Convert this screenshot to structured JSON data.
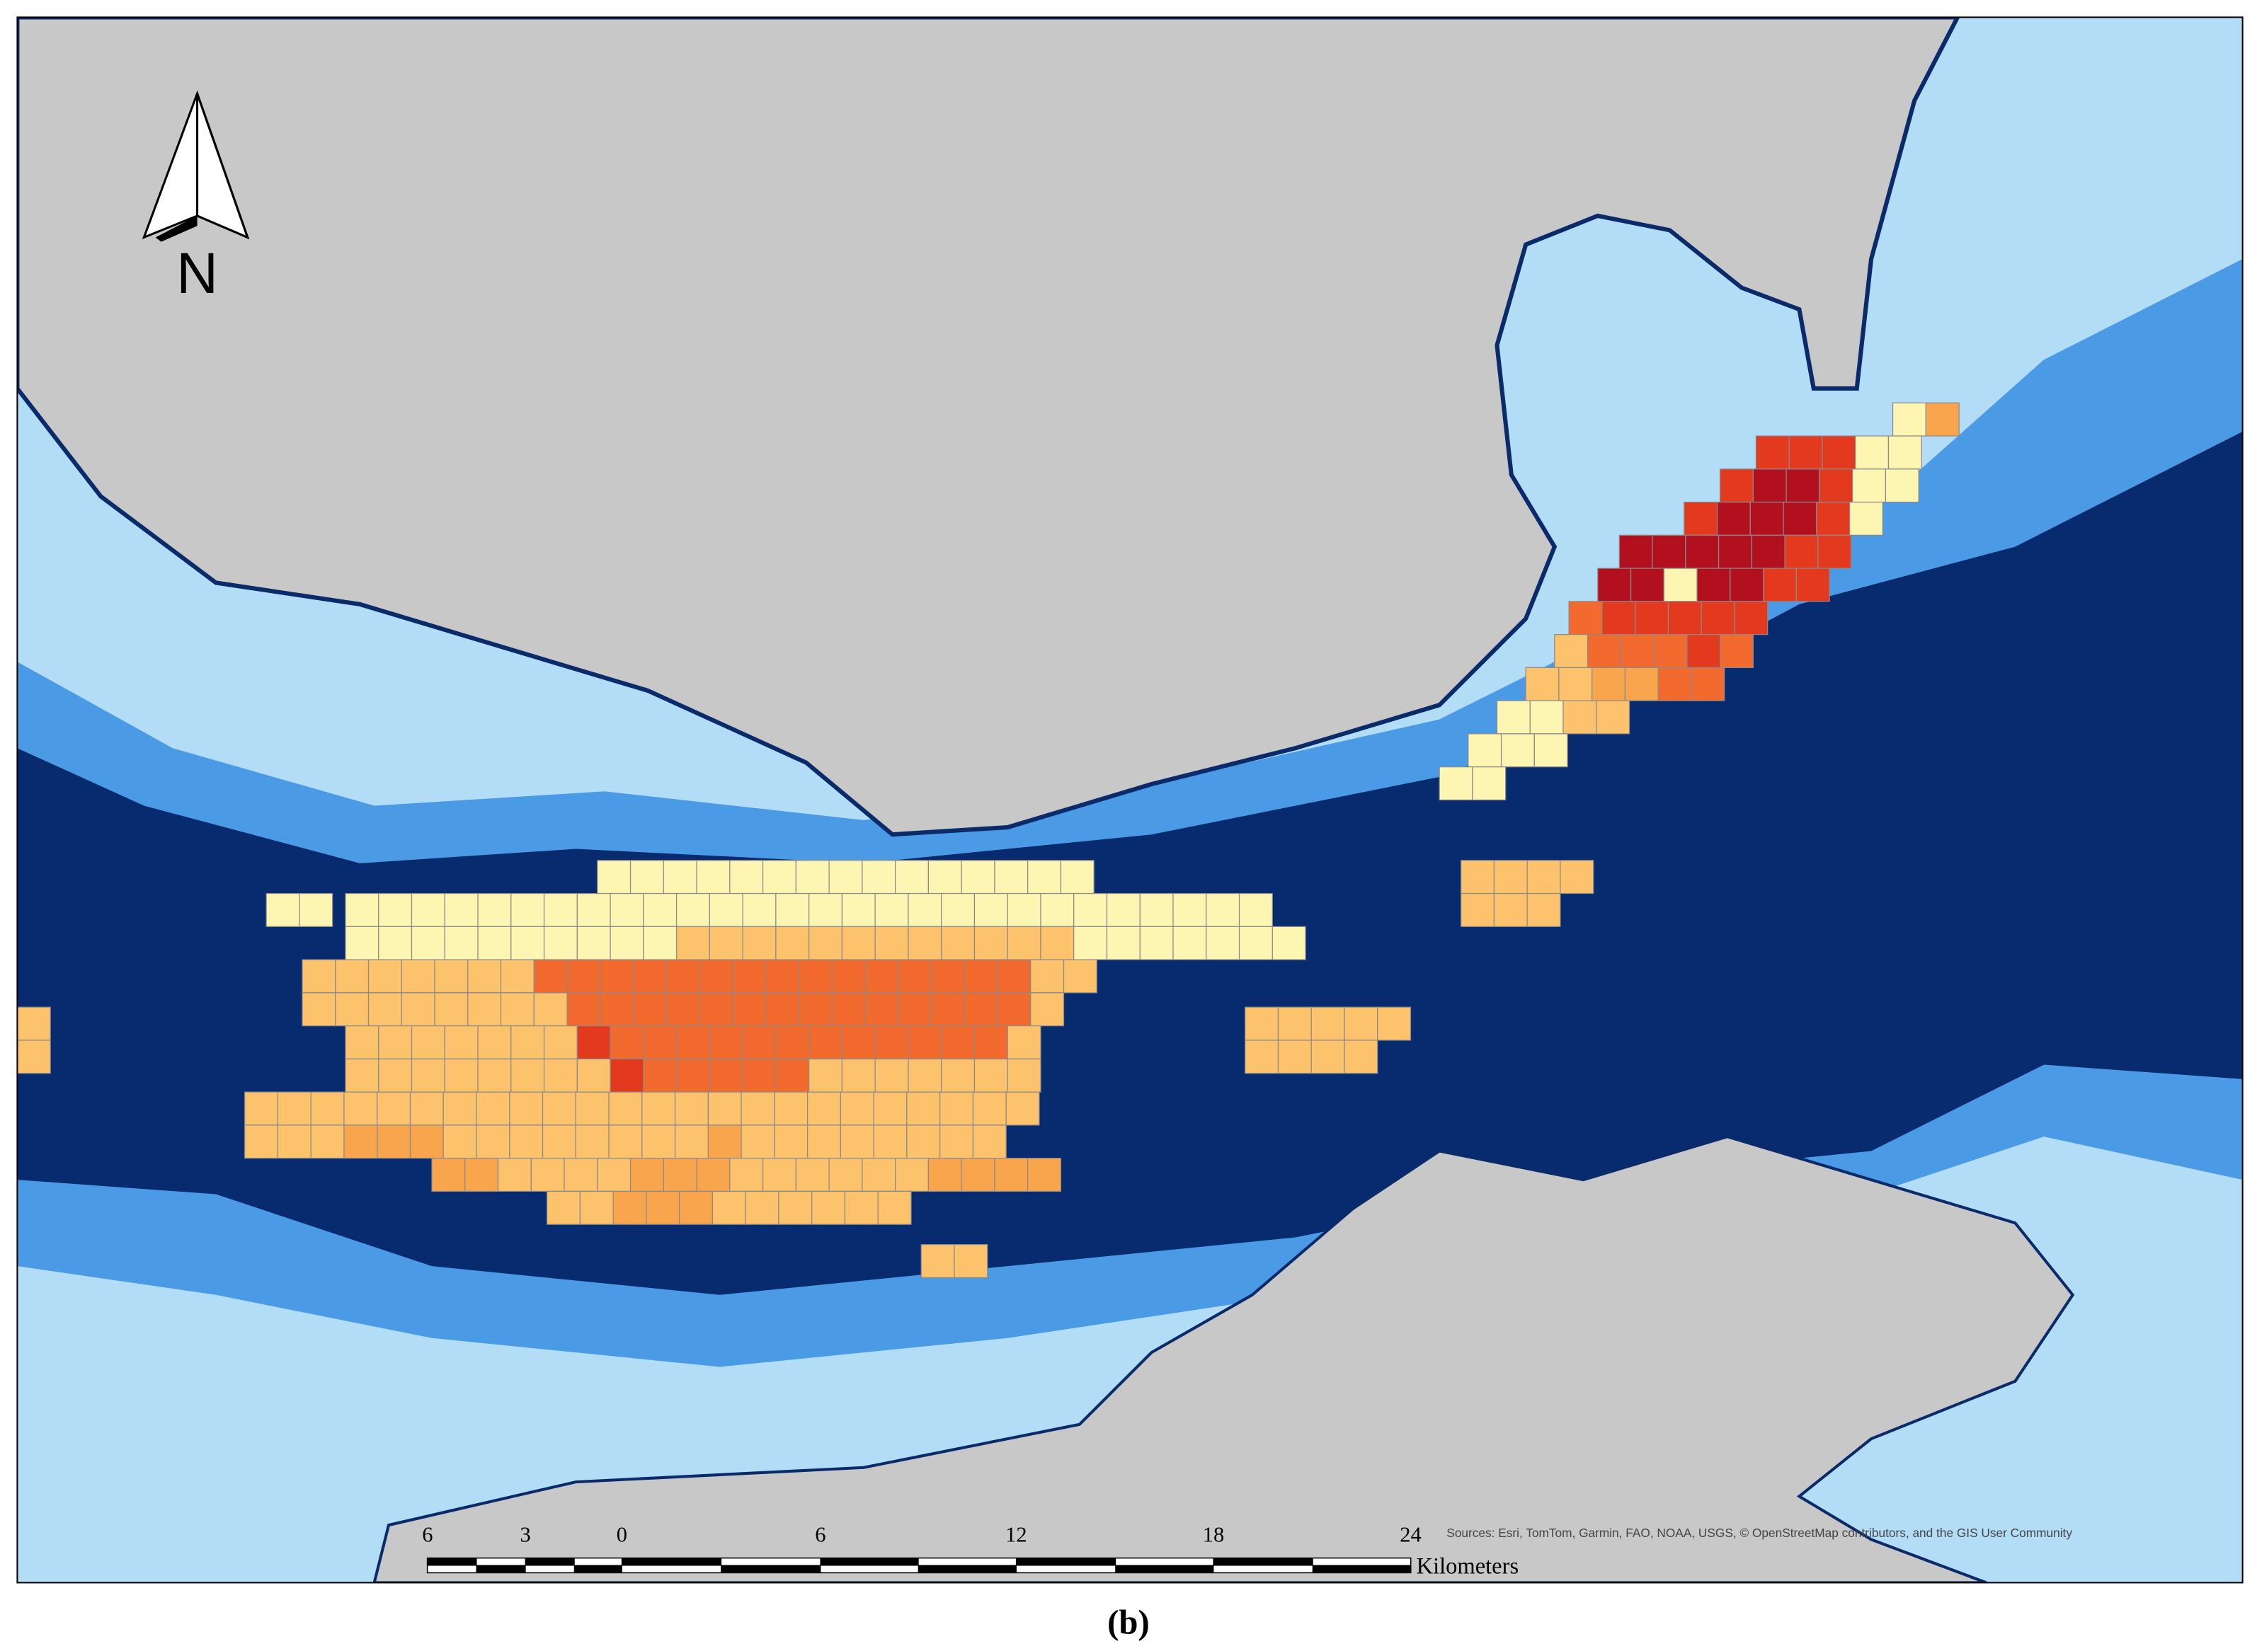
{
  "north_label": "N",
  "scale_bar": {
    "labels": [
      "6",
      "3",
      "0",
      "6",
      "12",
      "18",
      "24"
    ],
    "unit": "Kilometers"
  },
  "attribution": "Sources: Esri, TomTom, Garmin, FAO, NOAA, USGS, © OpenStreetMap contributors, and the GIS User Community",
  "caption": "(b)"
}
